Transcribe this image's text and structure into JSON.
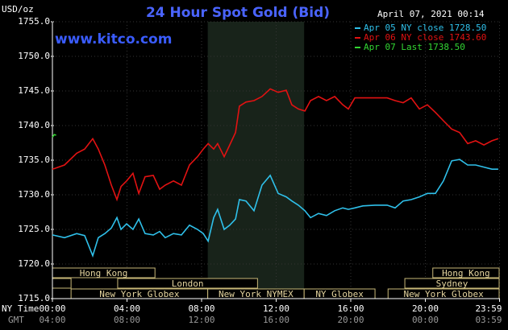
{
  "chart_data": {
    "type": "line",
    "title": "24 Hour Spot Gold (Bid)",
    "subtitle": "April 07, 2021 00:14",
    "watermark": "www.kitco.com",
    "y_label": "USD/oz",
    "x_label": "NY Time",
    "x2_label": "GMT",
    "xlim": [
      0,
      24
    ],
    "ylim": [
      1715,
      1755
    ],
    "grid": true,
    "yticks": [
      {
        "value": 1715,
        "label": "1715.0"
      },
      {
        "value": 1720,
        "label": "1720.0"
      },
      {
        "value": 1725,
        "label": "1725.0"
      },
      {
        "value": 1730,
        "label": "1730.0"
      },
      {
        "value": 1735,
        "label": "1735.0"
      },
      {
        "value": 1740,
        "label": "1740.0"
      },
      {
        "value": 1745,
        "label": "1745.0"
      },
      {
        "value": 1750,
        "label": "1750.0"
      },
      {
        "value": 1755,
        "label": "1755.0"
      }
    ],
    "xticks": [
      {
        "value": 0,
        "label": "00:00"
      },
      {
        "value": 4,
        "label": "04:00"
      },
      {
        "value": 8,
        "label": "08:00"
      },
      {
        "value": 12,
        "label": "12:00"
      },
      {
        "value": 16,
        "label": "16:00"
      },
      {
        "value": 20,
        "label": "20:00"
      },
      {
        "value": 23.98,
        "label": "23:59"
      }
    ],
    "x2ticks": [
      {
        "value": 0,
        "label": "04:00"
      },
      {
        "value": 4,
        "label": "08:00"
      },
      {
        "value": 8,
        "label": "12:00"
      },
      {
        "value": 12,
        "label": "16:00"
      },
      {
        "value": 16,
        "label": "20:00"
      },
      {
        "value": 20,
        "label": "00:00"
      },
      {
        "value": 23.98,
        "label": "03:59"
      }
    ],
    "highlight": {
      "start": 8.33,
      "end": 13.5
    },
    "sessions": [
      [
        {
          "label": "Hong Kong",
          "start": 0,
          "end": 5.5
        },
        {
          "label": "Hong Kong",
          "start": 20.4,
          "end": 24
        }
      ],
      [
        {
          "label": null,
          "start": 0,
          "end": 1
        },
        {
          "label": "London",
          "start": 3.5,
          "end": 11
        },
        {
          "label": "Sydney",
          "start": 18.9,
          "end": 24
        }
      ],
      [
        {
          "label": "New York Globex",
          "start": 1,
          "end": 8.33
        },
        {
          "label": "New York NYMEX",
          "start": 8.33,
          "end": 13.5
        },
        {
          "label": "NY Globex",
          "start": 13.5,
          "end": 17.3
        },
        {
          "label": "New York Globex",
          "start": 18,
          "end": 24
        }
      ]
    ],
    "x": [
      0,
      0.65,
      1.3,
      1.73,
      2.16,
      2.46,
      2.81,
      3.16,
      3.46,
      3.68,
      3.98,
      4.32,
      4.63,
      4.97,
      5.41,
      5.75,
      6.05,
      6.49,
      6.92,
      7.35,
      7.78,
      8.09,
      8.35,
      8.65,
      8.86,
      9.21,
      9.51,
      9.82,
      10.03,
      10.38,
      10.81,
      11.24,
      11.68,
      12.11,
      12.54,
      12.84,
      13.19,
      13.54,
      13.84,
      14.27,
      14.7,
      15.14,
      15.57,
      15.87,
      16.22,
      16.65,
      17.3,
      17.95,
      18.38,
      18.81,
      19.24,
      19.68,
      20.11,
      20.54,
      20.97,
      21.41,
      21.84,
      22.27,
      22.7,
      23.14,
      23.57,
      23.91
    ],
    "series": [
      {
        "name": "Apr 05 NY close 1728.50",
        "color": "#2fc0ea",
        "values": [
          1724.2,
          1723.8,
          1724.4,
          1724.1,
          1721.2,
          1723.8,
          1724.4,
          1725.2,
          1726.7,
          1725.0,
          1725.8,
          1725.0,
          1726.5,
          1724.4,
          1724.2,
          1724.7,
          1723.8,
          1724.4,
          1724.2,
          1725.6,
          1725.0,
          1724.4,
          1723.3,
          1726.7,
          1727.9,
          1725.0,
          1725.6,
          1726.5,
          1729.3,
          1729.1,
          1727.7,
          1731.4,
          1732.8,
          1730.2,
          1729.7,
          1729.1,
          1728.5,
          1727.7,
          1726.7,
          1727.3,
          1727.0,
          1727.7,
          1728.1,
          1727.9,
          1728.1,
          1728.4,
          1728.5,
          1728.5,
          1728.1,
          1729.1,
          1729.3,
          1729.7,
          1730.2,
          1730.2,
          1732.0,
          1734.9,
          1735.1,
          1734.3,
          1734.3,
          1734.0,
          1733.7,
          1733.7
        ]
      },
      {
        "name": "Apr 06 NY close 1743.60",
        "color": "#e21212",
        "values": [
          1733.7,
          1734.3,
          1736.0,
          1736.6,
          1738.1,
          1736.6,
          1734.3,
          1731.4,
          1729.3,
          1731.2,
          1732.0,
          1733.1,
          1730.2,
          1732.6,
          1732.8,
          1730.8,
          1731.4,
          1732.0,
          1731.4,
          1734.3,
          1735.5,
          1736.6,
          1737.4,
          1736.6,
          1737.4,
          1735.5,
          1737.2,
          1739.0,
          1742.8,
          1743.4,
          1743.6,
          1744.2,
          1745.3,
          1744.8,
          1745.1,
          1743.0,
          1742.4,
          1742.1,
          1743.6,
          1744.2,
          1743.6,
          1744.2,
          1743.0,
          1742.4,
          1744.0,
          1744.0,
          1744.0,
          1744.0,
          1743.6,
          1743.3,
          1744.0,
          1742.4,
          1743.0,
          1741.9,
          1740.7,
          1739.5,
          1739.0,
          1737.4,
          1737.8,
          1737.2,
          1737.8,
          1738.1
        ]
      },
      {
        "name": "Apr 07 Last 1738.50",
        "color": "#33d633",
        "x": [
          0,
          0.1,
          0.2
        ],
        "values": [
          1738.3,
          1738.7,
          1738.6
        ]
      }
    ]
  }
}
